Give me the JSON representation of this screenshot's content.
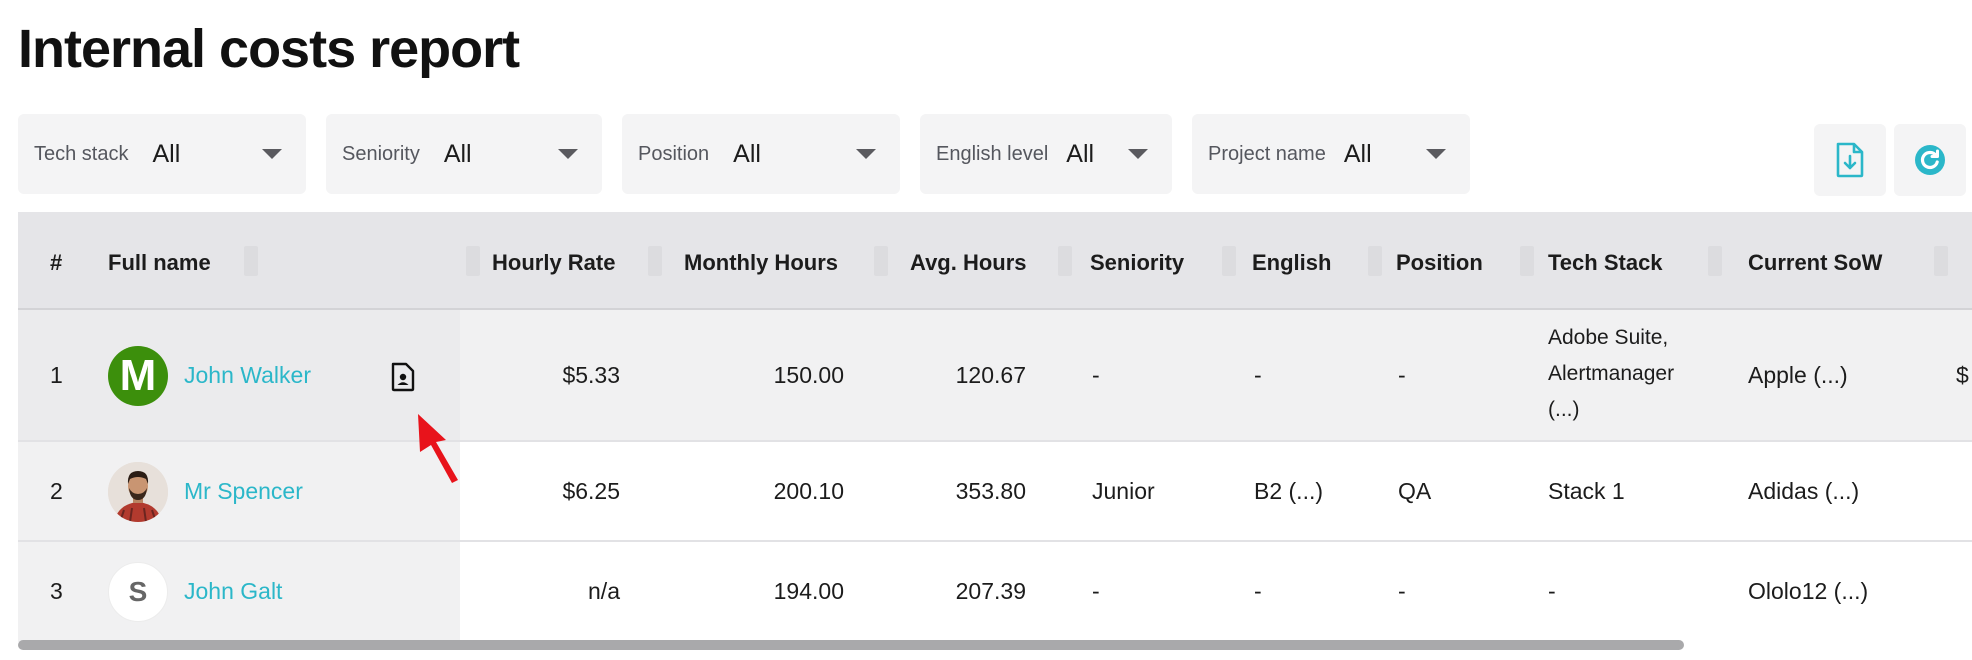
{
  "title": "Internal costs report",
  "filters": [
    {
      "label": "Tech stack",
      "value": "All"
    },
    {
      "label": "Seniority",
      "value": "All"
    },
    {
      "label": "Position",
      "value": "All"
    },
    {
      "label": "English level",
      "value": "All"
    },
    {
      "label": "Project name",
      "value": "All"
    }
  ],
  "actions": {
    "export_icon": "file-download-icon",
    "refresh_icon": "refresh-icon"
  },
  "columns": {
    "num": "#",
    "full_name": "Full name",
    "hourly_rate": "Hourly Rate",
    "monthly_hours": "Monthly Hours",
    "avg_hours": "Avg. Hours",
    "seniority": "Seniority",
    "english": "English",
    "position": "Position",
    "tech_stack": "Tech Stack",
    "current_sow": "Current SoW"
  },
  "rows": [
    {
      "num": "1",
      "name": "John Walker",
      "avatar_letter": "M",
      "hourly_rate": "$5.33",
      "monthly_hours": "150.00",
      "avg_hours": "120.67",
      "seniority": "-",
      "english": "-",
      "position": "-",
      "tech_stack_lines": [
        "Adobe Suite,",
        "Alertmanager",
        "(...)"
      ],
      "current_sow": "Apple (...)",
      "overflow": "$"
    },
    {
      "num": "2",
      "name": "Mr Spencer",
      "hourly_rate": "$6.25",
      "monthly_hours": "200.10",
      "avg_hours": "353.80",
      "seniority": "Junior",
      "english": "B2 (...)",
      "position": "QA",
      "tech_stack": "Stack 1",
      "current_sow": "Adidas (...)"
    },
    {
      "num": "3",
      "name": "John Galt",
      "avatar_letter": "S",
      "hourly_rate": "n/a",
      "monthly_hours": "194.00",
      "avg_hours": "207.39",
      "seniority": "-",
      "english": "-",
      "position": "-",
      "tech_stack": "-",
      "current_sow": "Ololo12 (...)"
    }
  ],
  "colors": {
    "link": "#2bb7c9",
    "avatar_green": "#3c8f0c",
    "pointer": "#e8131b"
  }
}
